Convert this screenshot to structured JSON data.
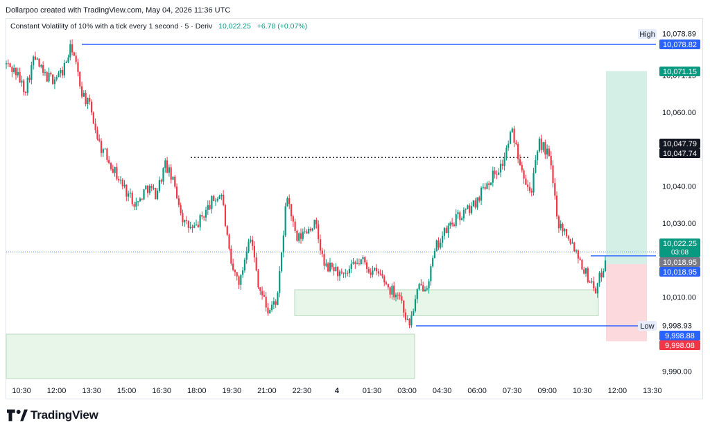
{
  "header": {
    "created_line": "Dollarpoo created with TradingView.com, May 04, 2026 11:36 UTC"
  },
  "legend": {
    "symbol_line": "Constant Volatility of 10% with a tick every 1 second · 5 · Deriv",
    "price": "10,022.25",
    "change": "+6.78 (+0.07%)"
  },
  "footer": {
    "brand": "TradingView"
  },
  "colors": {
    "up": "#089981",
    "down": "#f23645",
    "level_line": "#2962ff",
    "text_axis": "#131722"
  },
  "chart_data": {
    "type": "candlestick",
    "x_tick_labels": [
      "10:30",
      "12:00",
      "13:30",
      "15:00",
      "16:30",
      "18:00",
      "19:30",
      "21:00",
      "22:30",
      "4",
      "01:30",
      "03:00",
      "04:30",
      "06:00",
      "07:30",
      "09:00",
      "10:30",
      "12:00",
      "13:30"
    ],
    "y_tick_labels": [
      "10,071.15",
      "10,060.00",
      "10,050.00",
      "10,040.00",
      "10,030.00",
      "10,020.00",
      "10,010.00",
      "10,000.00",
      "9,990.00"
    ],
    "y_ticks": [
      10070,
      10060,
      10050,
      10040,
      10030,
      10020,
      10010,
      10000,
      9990
    ],
    "ylim": [
      9988,
      10081
    ],
    "price_path": [
      [
        0,
        10073
      ],
      [
        0.5,
        10071
      ],
      [
        1,
        10066
      ],
      [
        1.5,
        10075
      ],
      [
        2,
        10070
      ],
      [
        2.5,
        10069
      ],
      [
        3,
        10071
      ],
      [
        3.5,
        10078
      ],
      [
        4,
        10066
      ],
      [
        4.5,
        10061
      ],
      [
        5,
        10051
      ],
      [
        5.5,
        10047
      ],
      [
        6,
        10042
      ],
      [
        6.5,
        10038
      ],
      [
        7,
        10035
      ],
      [
        7.5,
        10040
      ],
      [
        8,
        10038
      ],
      [
        8.5,
        10046
      ],
      [
        9,
        10040
      ],
      [
        9.5,
        10030
      ],
      [
        10,
        10028
      ],
      [
        10.5,
        10032
      ],
      [
        11,
        10036
      ],
      [
        11.5,
        10038
      ],
      [
        12,
        10018
      ],
      [
        12.5,
        10014
      ],
      [
        13,
        10028
      ],
      [
        13.5,
        10013
      ],
      [
        14,
        10006
      ],
      [
        14.5,
        10010
      ],
      [
        15,
        10038
      ],
      [
        15.5,
        10025
      ],
      [
        16,
        10028
      ],
      [
        16.5,
        10030
      ],
      [
        17,
        10018
      ],
      [
        17.5,
        10018
      ],
      [
        18,
        10015
      ],
      [
        18.5,
        10018
      ],
      [
        19,
        10020
      ],
      [
        19.5,
        10017
      ],
      [
        20,
        10016
      ],
      [
        20.5,
        10012
      ],
      [
        21,
        10011
      ],
      [
        21.5,
        10002
      ],
      [
        22,
        10012
      ],
      [
        22.5,
        10014
      ],
      [
        23,
        10024
      ],
      [
        23.5,
        10028
      ],
      [
        24,
        10031
      ],
      [
        24.5,
        10033
      ],
      [
        25,
        10035
      ],
      [
        25.5,
        10040
      ],
      [
        26,
        10043
      ],
      [
        26.5,
        10046
      ],
      [
        27,
        10055
      ],
      [
        27.5,
        10046
      ],
      [
        28,
        10038
      ],
      [
        28.5,
        10052
      ],
      [
        29,
        10048
      ],
      [
        29.5,
        10030
      ],
      [
        30,
        10027
      ],
      [
        30.5,
        10022
      ],
      [
        31,
        10016
      ],
      [
        31.5,
        10012
      ],
      [
        32,
        10020
      ]
    ],
    "levels": [
      {
        "label": "High",
        "value": "10,078.89"
      },
      {
        "value": "10,078.82"
      },
      {
        "value": "10,047.79"
      },
      {
        "value": "10,047.74"
      },
      {
        "value": "10,022.25",
        "sub": "03:08"
      },
      {
        "value": "10,018.95"
      },
      {
        "value": "10,018.95"
      },
      {
        "label": "Low",
        "value": "9,998.93"
      },
      {
        "value": "9,998.88"
      },
      {
        "value": "9,998.08"
      }
    ],
    "position_tool": {
      "entry": 10018.95,
      "target": 10071.15,
      "stop": 9998.08
    },
    "dotted_level": 10047.79,
    "demand_zones": [
      {
        "top": 10012,
        "bottom": 10005
      },
      {
        "top": 10000,
        "bottom": 9988
      }
    ]
  }
}
